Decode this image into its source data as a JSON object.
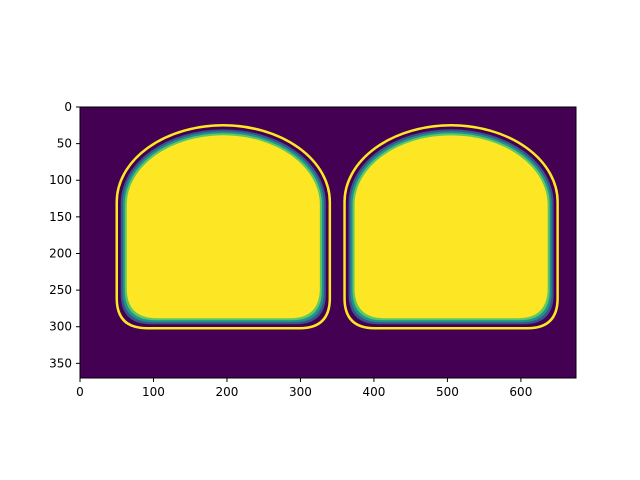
{
  "chart_data": {
    "type": "heatmap",
    "title": "",
    "xlabel": "",
    "ylabel": "",
    "xlim": [
      0,
      675
    ],
    "ylim": [
      370,
      0
    ],
    "x_ticks": [
      "0",
      "100",
      "200",
      "300",
      "400",
      "500",
      "600"
    ],
    "y_ticks": [
      "0",
      "50",
      "100",
      "150",
      "200",
      "250",
      "300",
      "350"
    ],
    "colormap": "viridis",
    "colors": {
      "background": "#440154",
      "fill": "#fde725",
      "edge_mid": "#21918c",
      "edge_dark": "#3b528b"
    },
    "regions": [
      {
        "shape": "rounded-dome",
        "x_range": [
          50,
          340
        ],
        "y_range": [
          25,
          302
        ]
      },
      {
        "shape": "rounded-dome",
        "x_range": [
          360,
          650
        ],
        "y_range": [
          25,
          302
        ]
      }
    ],
    "grid": false,
    "legend": "none"
  }
}
